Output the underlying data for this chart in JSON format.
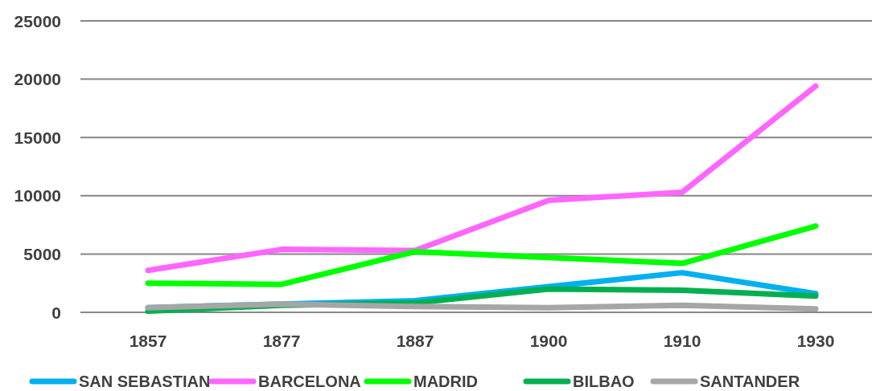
{
  "chart_data": {
    "type": "line",
    "categories": [
      "1857",
      "1877",
      "1887",
      "1900",
      "1910",
      "1930"
    ],
    "series": [
      {
        "name": "SAN SEBASTIAN",
        "color": "#00b0f0",
        "values": [
          400,
          700,
          1000,
          2200,
          3400,
          1600
        ]
      },
      {
        "name": "BARCELONA",
        "color": "#ff66ff",
        "values": [
          3600,
          5400,
          5300,
          9600,
          10300,
          19400
        ]
      },
      {
        "name": "MADRID",
        "color": "#00ff00",
        "values": [
          2500,
          2400,
          5200,
          4700,
          4200,
          7400
        ]
      },
      {
        "name": "BILBAO",
        "color": "#00b050",
        "values": [
          100,
          600,
          800,
          2000,
          1900,
          1400
        ]
      },
      {
        "name": "SANTANDER",
        "color": "#a6a6a6",
        "values": [
          400,
          700,
          500,
          400,
          600,
          300
        ]
      }
    ],
    "ylim": [
      0,
      25000
    ],
    "yticks": [
      0,
      5000,
      10000,
      15000,
      20000,
      25000
    ],
    "grid": "y",
    "legend": "bottom",
    "marker": "none",
    "line_style": "solid"
  }
}
